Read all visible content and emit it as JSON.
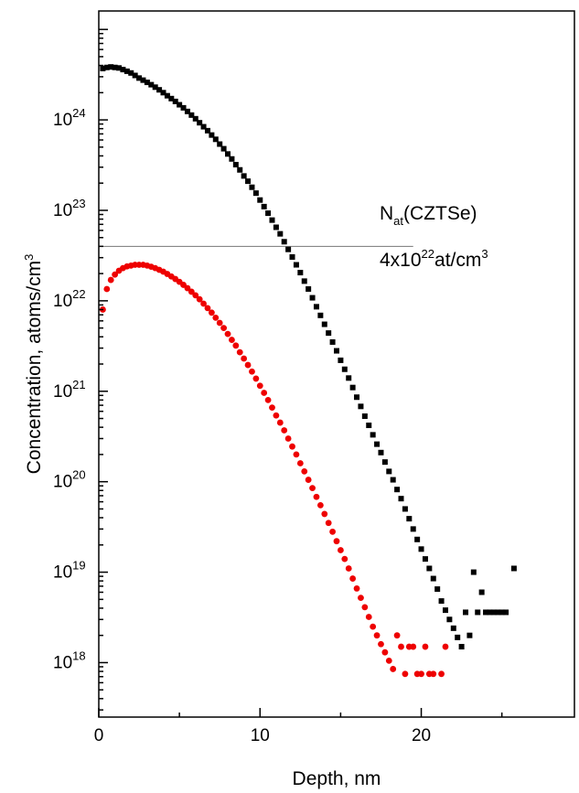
{
  "chart_data": {
    "type": "scatter",
    "title": "",
    "xlabel": "Depth, nm",
    "ylabel": "Concentration, atoms/cm",
    "ylabel_sup": "3",
    "x_scale": "linear",
    "y_scale": "log",
    "xlim": [
      0,
      29.5
    ],
    "ylim": [
      2.5e+17,
      1.6e+25
    ],
    "x_ticks": [
      0,
      10,
      20
    ],
    "x_tick_labels": [
      "0",
      "10",
      "20"
    ],
    "y_tick_labels": [
      {
        "base": "10",
        "exp": "18",
        "value": 1e+18
      },
      {
        "base": "10",
        "exp": "19",
        "value": 1e+19
      },
      {
        "base": "10",
        "exp": "20",
        "value": 1e+20
      },
      {
        "base": "10",
        "exp": "21",
        "value": 1e+21
      },
      {
        "base": "10",
        "exp": "22",
        "value": 1e+22
      },
      {
        "base": "10",
        "exp": "23",
        "value": 1e+23
      },
      {
        "base": "10",
        "exp": "24",
        "value": 1e+24
      }
    ],
    "grid": false,
    "reference_line": {
      "y": 4e+22,
      "x_range": [
        0,
        19.5
      ],
      "color": "#777777",
      "label_main": "N",
      "label_sub": "at",
      "label_rest": "(CZTSe)",
      "value_pre": "4x10",
      "value_sup": "22",
      "value_post": "at/cm",
      "value_sup2": "3"
    },
    "series": [
      {
        "marker": "square",
        "color": "#000000",
        "points": [
          [
            0.25,
            3.7e+24
          ],
          [
            0.5,
            3.8e+24
          ],
          [
            0.75,
            3.85e+24
          ],
          [
            1.0,
            3.8e+24
          ],
          [
            1.25,
            3.75e+24
          ],
          [
            1.5,
            3.6e+24
          ],
          [
            1.75,
            3.45e+24
          ],
          [
            2.0,
            3.3e+24
          ],
          [
            2.25,
            3.1e+24
          ],
          [
            2.5,
            2.9e+24
          ],
          [
            2.75,
            2.75e+24
          ],
          [
            3.0,
            2.6e+24
          ],
          [
            3.25,
            2.45e+24
          ],
          [
            3.5,
            2.3e+24
          ],
          [
            3.75,
            2.15e+24
          ],
          [
            4.0,
            2e+24
          ],
          [
            4.25,
            1.85e+24
          ],
          [
            4.5,
            1.72e+24
          ],
          [
            4.75,
            1.6e+24
          ],
          [
            5.0,
            1.47e+24
          ],
          [
            5.25,
            1.36e+24
          ],
          [
            5.5,
            1.24e+24
          ],
          [
            5.75,
            1.13e+24
          ],
          [
            6.0,
            1.03e+24
          ],
          [
            6.25,
            9.3e+23
          ],
          [
            6.5,
            8.4e+23
          ],
          [
            6.75,
            7.6e+23
          ],
          [
            7.0,
            6.8e+23
          ],
          [
            7.25,
            6.1e+23
          ],
          [
            7.5,
            5.4e+23
          ],
          [
            7.75,
            4.8e+23
          ],
          [
            8.0,
            4.2e+23
          ],
          [
            8.25,
            3.7e+23
          ],
          [
            8.5,
            3.2e+23
          ],
          [
            8.75,
            2.8e+23
          ],
          [
            9.0,
            2.4e+23
          ],
          [
            9.25,
            2.1e+23
          ],
          [
            9.5,
            1.8e+23
          ],
          [
            9.75,
            1.55e+23
          ],
          [
            10.0,
            1.3e+23
          ],
          [
            10.25,
            1.1e+23
          ],
          [
            10.5,
            9.3e+22
          ],
          [
            10.75,
            7.8e+22
          ],
          [
            11.0,
            6.5e+22
          ],
          [
            11.25,
            5.5e+22
          ],
          [
            11.5,
            4.5e+22
          ],
          [
            11.75,
            3.7e+22
          ],
          [
            12.0,
            3.05e+22
          ],
          [
            12.25,
            2.5e+22
          ],
          [
            12.5,
            2.05e+22
          ],
          [
            12.75,
            1.65e+22
          ],
          [
            13.0,
            1.35e+22
          ],
          [
            13.25,
            1.08e+22
          ],
          [
            13.5,
            8.6e+21
          ],
          [
            13.75,
            6.9e+21
          ],
          [
            14.0,
            5.5e+21
          ],
          [
            14.25,
            4.4e+21
          ],
          [
            14.5,
            3.5e+21
          ],
          [
            14.75,
            2.8e+21
          ],
          [
            15.0,
            2.2e+21
          ],
          [
            15.25,
            1.75e+21
          ],
          [
            15.5,
            1.4e+21
          ],
          [
            15.75,
            1.1e+21
          ],
          [
            16.0,
            8.6e+20
          ],
          [
            16.25,
            6.8e+20
          ],
          [
            16.5,
            5.3e+20
          ],
          [
            16.75,
            4.2e+20
          ],
          [
            17.0,
            3.3e+20
          ],
          [
            17.25,
            2.6e+20
          ],
          [
            17.5,
            2.1e+20
          ],
          [
            17.75,
            1.65e+20
          ],
          [
            18.0,
            1.3e+20
          ],
          [
            18.25,
            1.05e+20
          ],
          [
            18.5,
            8.2e+19
          ],
          [
            18.75,
            6.5e+19
          ],
          [
            19.0,
            5e+19
          ],
          [
            19.25,
            3.9e+19
          ],
          [
            19.5,
            3e+19
          ],
          [
            19.75,
            2.3e+19
          ],
          [
            20.0,
            1.8e+19
          ],
          [
            20.25,
            1.4e+19
          ],
          [
            20.5,
            1.1e+19
          ],
          [
            20.75,
            8.5e+18
          ],
          [
            21.0,
            6.5e+18
          ],
          [
            21.25,
            4.8e+18
          ],
          [
            21.5,
            3.8e+18
          ],
          [
            21.75,
            3e+18
          ],
          [
            22.0,
            2.4e+18
          ],
          [
            22.25,
            1.9e+18
          ],
          [
            22.5,
            1.5e+18
          ],
          [
            22.75,
            3.6e+18
          ],
          [
            23.0,
            2e+18
          ],
          [
            23.25,
            1e+19
          ],
          [
            23.5,
            3.6e+18
          ],
          [
            23.75,
            6e+18
          ],
          [
            24.0,
            3.6e+18
          ],
          [
            24.25,
            3.6e+18
          ],
          [
            24.5,
            3.6e+18
          ],
          [
            24.75,
            3.6e+18
          ],
          [
            25.0,
            3.6e+18
          ],
          [
            25.25,
            3.6e+18
          ],
          [
            25.75,
            1.1e+19
          ]
        ]
      },
      {
        "marker": "circle",
        "color": "#ee0000",
        "points": [
          [
            0.25,
            8e+21
          ],
          [
            0.5,
            1.35e+22
          ],
          [
            0.75,
            1.7e+22
          ],
          [
            1.0,
            1.95e+22
          ],
          [
            1.25,
            2.15e+22
          ],
          [
            1.5,
            2.3e+22
          ],
          [
            1.75,
            2.4e+22
          ],
          [
            2.0,
            2.45e+22
          ],
          [
            2.25,
            2.5e+22
          ],
          [
            2.5,
            2.5e+22
          ],
          [
            2.75,
            2.5e+22
          ],
          [
            3.0,
            2.45e+22
          ],
          [
            3.25,
            2.38e+22
          ],
          [
            3.5,
            2.3e+22
          ],
          [
            3.75,
            2.2e+22
          ],
          [
            4.0,
            2.1e+22
          ],
          [
            4.25,
            1.98e+22
          ],
          [
            4.5,
            1.86e+22
          ],
          [
            4.75,
            1.74e+22
          ],
          [
            5.0,
            1.62e+22
          ],
          [
            5.25,
            1.5e+22
          ],
          [
            5.5,
            1.38e+22
          ],
          [
            5.75,
            1.26e+22
          ],
          [
            6.0,
            1.15e+22
          ],
          [
            6.25,
            1.04e+22
          ],
          [
            6.5,
            9.3e+21
          ],
          [
            6.75,
            8.3e+21
          ],
          [
            7.0,
            7.4e+21
          ],
          [
            7.25,
            6.5e+21
          ],
          [
            7.5,
            5.7e+21
          ],
          [
            7.75,
            5e+21
          ],
          [
            8.0,
            4.3e+21
          ],
          [
            8.25,
            3.7e+21
          ],
          [
            8.5,
            3.2e+21
          ],
          [
            8.75,
            2.7e+21
          ],
          [
            9.0,
            2.3e+21
          ],
          [
            9.25,
            1.95e+21
          ],
          [
            9.5,
            1.65e+21
          ],
          [
            9.75,
            1.38e+21
          ],
          [
            10.0,
            1.15e+21
          ],
          [
            10.25,
            9.6e+20
          ],
          [
            10.5,
            8e+20
          ],
          [
            10.75,
            6.6e+20
          ],
          [
            11.0,
            5.4e+20
          ],
          [
            11.25,
            4.5e+20
          ],
          [
            11.5,
            3.7e+20
          ],
          [
            11.75,
            3e+20
          ],
          [
            12.0,
            2.45e+20
          ],
          [
            12.25,
            2e+20
          ],
          [
            12.5,
            1.6e+20
          ],
          [
            12.75,
            1.3e+20
          ],
          [
            13.0,
            1.05e+20
          ],
          [
            13.25,
            8.5e+19
          ],
          [
            13.5,
            6.8e+19
          ],
          [
            13.75,
            5.5e+19
          ],
          [
            14.0,
            4.4e+19
          ],
          [
            14.25,
            3.5e+19
          ],
          [
            14.5,
            2.8e+19
          ],
          [
            14.75,
            2.2e+19
          ],
          [
            15.0,
            1.75e+19
          ],
          [
            15.25,
            1.4e+19
          ],
          [
            15.5,
            1.1e+19
          ],
          [
            15.75,
            8.5e+18
          ],
          [
            16.0,
            6.6e+18
          ],
          [
            16.25,
            5.2e+18
          ],
          [
            16.5,
            4.1e+18
          ],
          [
            16.75,
            3.2e+18
          ],
          [
            17.0,
            2.5e+18
          ],
          [
            17.25,
            2e+18
          ],
          [
            17.5,
            1.6e+18
          ],
          [
            17.75,
            1.3e+18
          ],
          [
            18.0,
            1.05e+18
          ],
          [
            18.25,
            8.5e+17
          ],
          [
            18.5,
            2e+18
          ],
          [
            18.75,
            1.5e+18
          ],
          [
            19.0,
            7.5e+17
          ],
          [
            19.25,
            1.5e+18
          ],
          [
            19.5,
            1.5e+18
          ],
          [
            19.75,
            7.5e+17
          ],
          [
            20.0,
            7.5e+17
          ],
          [
            20.25,
            1.5e+18
          ],
          [
            20.5,
            7.5e+17
          ],
          [
            20.75,
            7.5e+17
          ],
          [
            21.25,
            7.5e+17
          ],
          [
            21.5,
            1.5e+18
          ]
        ]
      }
    ]
  }
}
